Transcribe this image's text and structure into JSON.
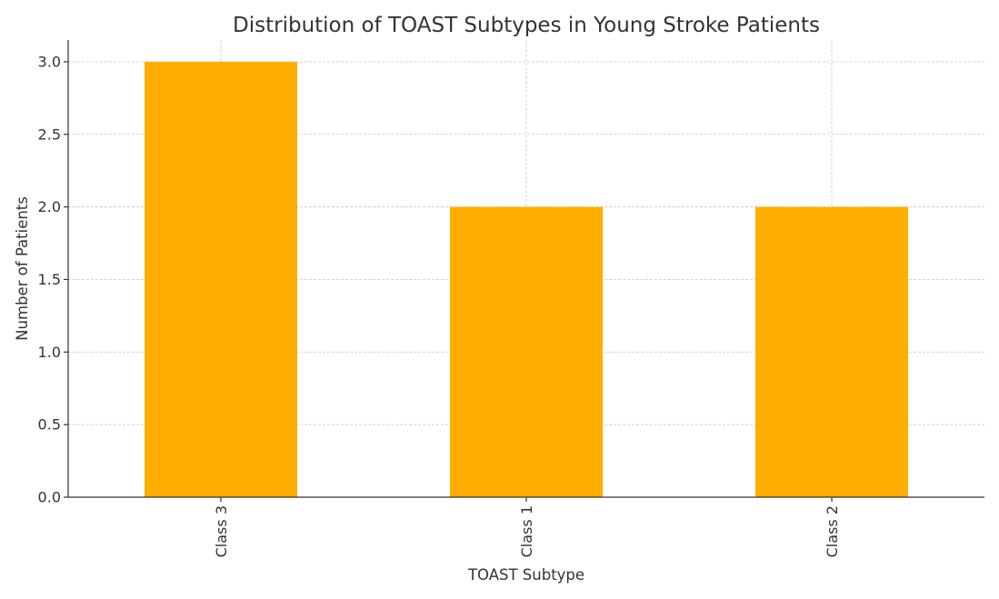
{
  "chart_data": {
    "type": "bar",
    "title": "Distribution of TOAST Subtypes in Young Stroke Patients",
    "xlabel": "TOAST Subtype",
    "ylabel": "Number of Patients",
    "categories": [
      "Class 3",
      "Class 1",
      "Class 2"
    ],
    "values": [
      3,
      2,
      2
    ],
    "ylim": [
      0,
      3.15
    ],
    "yticks": [
      0,
      0.5,
      1,
      1.5,
      2,
      2.5,
      3
    ],
    "ytick_labels": [
      "0.0",
      "0.5",
      "1.0",
      "1.5",
      "2.0",
      "2.5",
      "3.0"
    ],
    "grid": true,
    "bar_color": "#ffae00",
    "x_tick_rotation": "vertical"
  }
}
